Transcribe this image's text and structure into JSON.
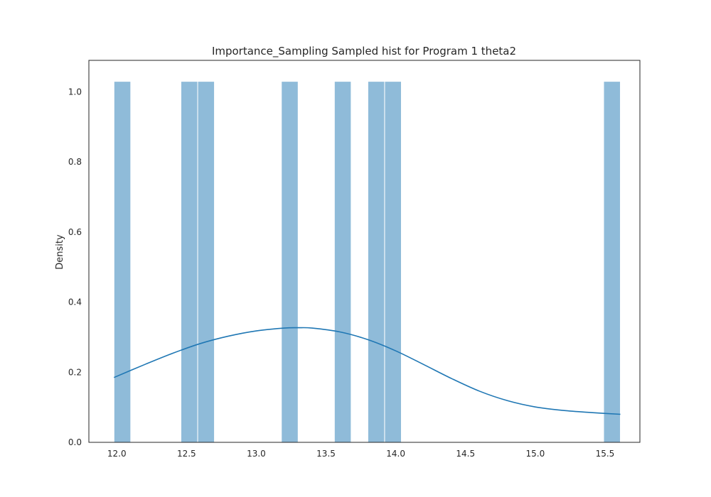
{
  "chart_data": {
    "type": "bar",
    "title": "Importance_Sampling Sampled hist for Program 1 theta2",
    "xlabel": "",
    "ylabel": "Density",
    "xlim": [
      11.8,
      15.75
    ],
    "ylim": [
      0,
      1.09
    ],
    "xticks": [
      12.0,
      12.5,
      13.0,
      13.5,
      14.0,
      14.5,
      15.0,
      15.5
    ],
    "xtick_labels": [
      "12.0",
      "12.5",
      "13.0",
      "13.5",
      "14.0",
      "14.5",
      "15.0",
      "15.5"
    ],
    "yticks": [
      0.0,
      0.2,
      0.4,
      0.6,
      0.8,
      1.0
    ],
    "ytick_labels": [
      "0.0",
      "0.2",
      "0.4",
      "0.6",
      "0.8",
      "1.0"
    ],
    "grid": false,
    "bars": [
      {
        "x0": 11.98,
        "x1": 12.1,
        "density": 1.03
      },
      {
        "x0": 12.46,
        "x1": 12.58,
        "density": 1.03
      },
      {
        "x0": 12.58,
        "x1": 12.7,
        "density": 1.03
      },
      {
        "x0": 13.18,
        "x1": 13.3,
        "density": 1.03
      },
      {
        "x0": 13.56,
        "x1": 13.68,
        "density": 1.03
      },
      {
        "x0": 13.8,
        "x1": 13.92,
        "density": 1.03
      },
      {
        "x0": 13.92,
        "x1": 14.04,
        "density": 1.03
      },
      {
        "x0": 15.49,
        "x1": 15.61,
        "density": 1.03
      }
    ],
    "kde": {
      "x": [
        11.98,
        12.2,
        12.4,
        12.6,
        12.8,
        13.0,
        13.2,
        13.3,
        13.4,
        13.6,
        13.8,
        14.0,
        14.2,
        14.4,
        14.6,
        14.8,
        15.0,
        15.2,
        15.4,
        15.61
      ],
      "y": [
        0.185,
        0.222,
        0.254,
        0.282,
        0.303,
        0.318,
        0.326,
        0.327,
        0.326,
        0.315,
        0.293,
        0.261,
        0.222,
        0.182,
        0.146,
        0.119,
        0.101,
        0.091,
        0.085,
        0.08
      ]
    },
    "colors": {
      "bar_fill": "#8fbbd9",
      "bar_edge": "#ffffff",
      "kde_line": "#1f77b4",
      "frame": "#262626",
      "text": "#262626"
    }
  }
}
